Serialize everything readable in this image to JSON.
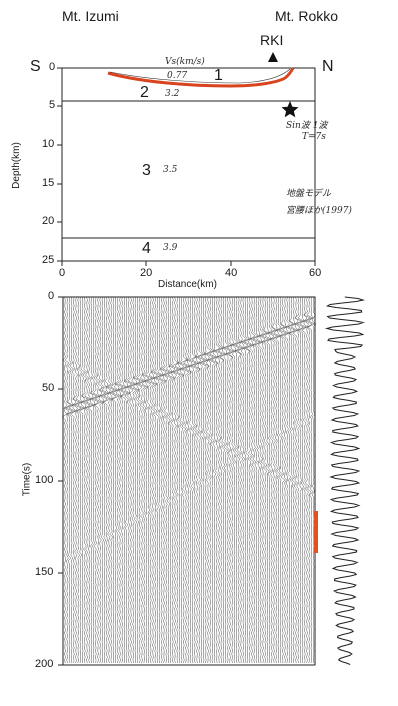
{
  "header": {
    "left_mountain": "Mt. Izumi",
    "right_mountain": "Mt. Rokko",
    "station": "RKI",
    "south": "S",
    "north": "N"
  },
  "model_panel": {
    "vs_label": "Vs(km/s)",
    "ylabel": "Depth(km)",
    "xlabel": "Distance(km)",
    "x_ticks": [
      "0",
      "20",
      "40",
      "60"
    ],
    "y_ticks": [
      "0",
      "5",
      "10",
      "15",
      "20",
      "25"
    ],
    "layers": [
      {
        "number": "1",
        "vs": "0.77"
      },
      {
        "number": "2",
        "vs": "3.2"
      },
      {
        "number": "3",
        "vs": "3.5"
      },
      {
        "number": "4",
        "vs": "3.9"
      }
    ],
    "source_note_1": "Sin波 1波",
    "source_note_2": "T=7s",
    "ref_note_1": "地盤モデル",
    "ref_note_2": "宮腰ほか(1997)"
  },
  "seismogram_panel": {
    "ylabel": "Time(s)",
    "y_ticks": [
      "0",
      "50",
      "100",
      "150",
      "200"
    ]
  },
  "colors": {
    "basin_outline": "#d9431e",
    "highlight_bar": "#e0521f",
    "trace": "#222222"
  }
}
